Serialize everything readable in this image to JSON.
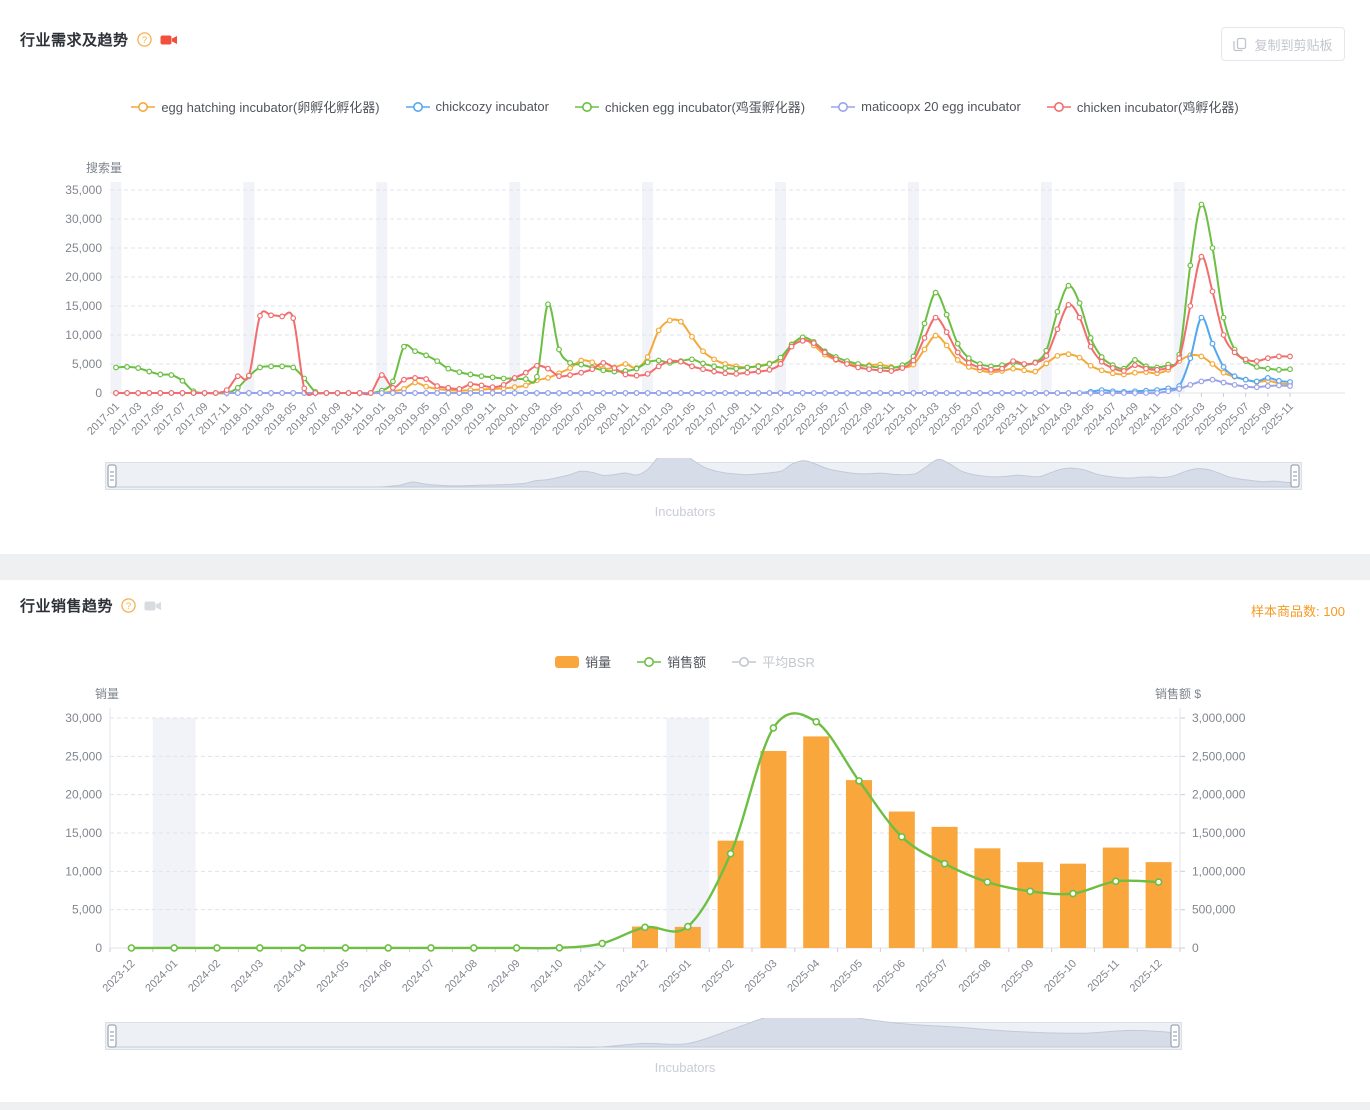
{
  "demand_section": {
    "title": "行业需求及趋势",
    "help_icon": "question-mark-circle",
    "video_icon": "video-camera",
    "copy_button_label": "复制到剪贴板",
    "watermark": "Incubators"
  },
  "sales_section": {
    "title": "行业销售趋势",
    "help_icon": "question-mark-circle",
    "video_icon": "video-camera",
    "sample_label": "样本商品数:",
    "sample_value": "100",
    "watermark": "Incubators"
  },
  "colors": {
    "orange": "#F4A939",
    "blue": "#55A7F0",
    "green": "#6CBF43",
    "purple": "#98A3EA",
    "red": "#F26D6D",
    "bar": "#F9A63C",
    "grid": "#E0E3E9",
    "band": "#F1F3F8",
    "axis_text": "#81868E",
    "accent": "#F59A23",
    "disabled": "#C3C7CE"
  },
  "chart_data": [
    {
      "type": "line",
      "title": "行业需求及趋势",
      "ylabel": "搜索量",
      "ylim": [
        0,
        35000
      ],
      "y_step": 5000,
      "label_every": 2,
      "grid": true,
      "legend_position": "top",
      "highlight_x": [
        "2017-01",
        "2018-01",
        "2019-01",
        "2020-01",
        "2021-01",
        "2022-01",
        "2023-01",
        "2024-01",
        "2025-01"
      ],
      "x": [
        "2017-01",
        "2017-02",
        "2017-03",
        "2017-04",
        "2017-05",
        "2017-06",
        "2017-07",
        "2017-08",
        "2017-09",
        "2017-10",
        "2017-11",
        "2017-12",
        "2018-01",
        "2018-02",
        "2018-03",
        "2018-04",
        "2018-05",
        "2018-06",
        "2018-07",
        "2018-08",
        "2018-09",
        "2018-10",
        "2018-11",
        "2018-12",
        "2019-01",
        "2019-02",
        "2019-03",
        "2019-04",
        "2019-05",
        "2019-06",
        "2019-07",
        "2019-08",
        "2019-09",
        "2019-10",
        "2019-11",
        "2019-12",
        "2020-01",
        "2020-02",
        "2020-03",
        "2020-04",
        "2020-05",
        "2020-06",
        "2020-07",
        "2020-08",
        "2020-09",
        "2020-10",
        "2020-11",
        "2020-12",
        "2021-01",
        "2021-02",
        "2021-03",
        "2021-04",
        "2021-05",
        "2021-06",
        "2021-07",
        "2021-08",
        "2021-09",
        "2021-10",
        "2021-11",
        "2021-12",
        "2022-01",
        "2022-02",
        "2022-03",
        "2022-04",
        "2022-05",
        "2022-06",
        "2022-07",
        "2022-08",
        "2022-09",
        "2022-10",
        "2022-11",
        "2022-12",
        "2023-01",
        "2023-02",
        "2023-03",
        "2023-04",
        "2023-05",
        "2023-06",
        "2023-07",
        "2023-08",
        "2023-09",
        "2023-10",
        "2023-11",
        "2023-12",
        "2024-01",
        "2024-02",
        "2024-03",
        "2024-04",
        "2024-05",
        "2024-06",
        "2024-07",
        "2024-08",
        "2024-09",
        "2024-10",
        "2024-11",
        "2024-12",
        "2025-01",
        "2025-02",
        "2025-03",
        "2025-04",
        "2025-05",
        "2025-06",
        "2025-07",
        "2025-08",
        "2025-09",
        "2025-10",
        "2025-11"
      ],
      "series": [
        {
          "name": "egg hatching incubator(卵孵化孵化器)",
          "color": "#F4A939",
          "values": [
            0,
            0,
            0,
            0,
            0,
            0,
            0,
            0,
            0,
            0,
            0,
            0,
            0,
            0,
            0,
            0,
            0,
            0,
            0,
            0,
            0,
            0,
            0,
            0,
            0,
            300,
            700,
            1800,
            1100,
            700,
            500,
            400,
            500,
            600,
            700,
            800,
            1000,
            1300,
            2200,
            2600,
            3400,
            4300,
            5600,
            5300,
            4200,
            4400,
            5000,
            4300,
            6200,
            10800,
            12500,
            12300,
            9700,
            7200,
            5800,
            5000,
            4600,
            4400,
            4700,
            5100,
            5800,
            8400,
            9400,
            8200,
            6600,
            5700,
            5100,
            4700,
            4800,
            4900,
            4500,
            4400,
            4900,
            7500,
            9900,
            8200,
            5700,
            4500,
            3900,
            3600,
            3800,
            4200,
            3900,
            3700,
            5100,
            6400,
            6700,
            6100,
            4700,
            3900,
            3400,
            3200,
            3500,
            3600,
            3400,
            4000,
            5500,
            6500,
            6300,
            5000,
            3500,
            2800,
            2300,
            1900,
            2100,
            1700,
            1500
          ]
        },
        {
          "name": "chickcozy incubator",
          "color": "#55A7F0",
          "values": [
            0,
            0,
            0,
            0,
            0,
            0,
            0,
            0,
            0,
            0,
            0,
            0,
            0,
            0,
            0,
            0,
            0,
            0,
            0,
            0,
            0,
            0,
            0,
            0,
            0,
            0,
            0,
            0,
            0,
            0,
            0,
            0,
            0,
            0,
            0,
            0,
            0,
            0,
            0,
            0,
            0,
            0,
            0,
            0,
            0,
            0,
            0,
            0,
            0,
            0,
            0,
            0,
            0,
            0,
            0,
            0,
            0,
            0,
            0,
            0,
            0,
            0,
            0,
            0,
            0,
            0,
            0,
            0,
            0,
            0,
            0,
            0,
            0,
            0,
            0,
            0,
            0,
            0,
            0,
            0,
            0,
            0,
            0,
            0,
            0,
            0,
            0,
            0,
            200,
            500,
            300,
            200,
            300,
            400,
            500,
            800,
            1200,
            6000,
            13000,
            8500,
            4500,
            2900,
            2300,
            2000,
            2600,
            2100,
            1900
          ]
        },
        {
          "name": "chicken egg incubator(鸡蛋孵化器)",
          "color": "#6CBF43",
          "values": [
            4400,
            4500,
            4300,
            3700,
            3200,
            3100,
            2100,
            300,
            0,
            0,
            0,
            900,
            2900,
            4400,
            4600,
            4600,
            4400,
            2500,
            200,
            0,
            0,
            0,
            0,
            0,
            400,
            2000,
            8000,
            7200,
            6500,
            5500,
            4200,
            3600,
            3200,
            2900,
            2700,
            2500,
            2500,
            2400,
            2800,
            15300,
            7500,
            5200,
            4900,
            4400,
            3900,
            3700,
            3800,
            4200,
            5300,
            5600,
            5200,
            5500,
            5800,
            5100,
            4600,
            4300,
            4200,
            4400,
            4600,
            5000,
            6100,
            8300,
            9600,
            8800,
            7200,
            6200,
            5500,
            5000,
            4600,
            4400,
            4300,
            4800,
            6300,
            12000,
            17300,
            13500,
            8500,
            6000,
            5000,
            4600,
            4800,
            5200,
            4900,
            5300,
            7300,
            14000,
            18500,
            15500,
            9500,
            6200,
            4800,
            4200,
            5700,
            4600,
            4400,
            4900,
            6600,
            22000,
            32500,
            25000,
            13000,
            7500,
            5500,
            4500,
            4200,
            4000,
            4100
          ]
        },
        {
          "name": "maticoopx 20 egg incubator",
          "color": "#98A3EA",
          "values": [
            0,
            0,
            0,
            0,
            0,
            0,
            0,
            0,
            0,
            0,
            0,
            0,
            0,
            0,
            0,
            0,
            0,
            0,
            0,
            0,
            0,
            0,
            0,
            0,
            0,
            0,
            0,
            0,
            0,
            0,
            0,
            0,
            0,
            0,
            0,
            0,
            0,
            0,
            0,
            0,
            0,
            0,
            0,
            0,
            0,
            0,
            0,
            0,
            0,
            0,
            0,
            0,
            0,
            0,
            0,
            0,
            0,
            0,
            0,
            0,
            0,
            0,
            0,
            0,
            0,
            0,
            0,
            0,
            0,
            0,
            0,
            0,
            0,
            0,
            0,
            0,
            0,
            0,
            0,
            0,
            0,
            0,
            0,
            0,
            0,
            0,
            0,
            0,
            0,
            0,
            0,
            0,
            0,
            0,
            0,
            300,
            700,
            1400,
            2000,
            2300,
            1800,
            1400,
            1100,
            1000,
            1200,
            1300,
            1200
          ]
        },
        {
          "name": "chicken incubator(鸡孵化器)",
          "color": "#F26D6D",
          "values": [
            0,
            0,
            0,
            0,
            0,
            0,
            0,
            0,
            0,
            0,
            500,
            2900,
            3000,
            13300,
            13400,
            13200,
            12900,
            800,
            0,
            0,
            0,
            0,
            0,
            0,
            3100,
            900,
            2300,
            2600,
            2400,
            1200,
            900,
            700,
            1500,
            1300,
            1000,
            1400,
            2600,
            3500,
            4700,
            4200,
            2900,
            3100,
            3500,
            4100,
            5200,
            4300,
            3200,
            3000,
            3300,
            4600,
            5500,
            5400,
            4600,
            4100,
            3700,
            3400,
            3300,
            3500,
            3700,
            4000,
            5000,
            8000,
            9000,
            8600,
            7000,
            5800,
            5000,
            4400,
            4100,
            3900,
            3800,
            4300,
            5600,
            9500,
            13000,
            10500,
            7000,
            5200,
            4400,
            4000,
            4200,
            5500,
            5000,
            5200,
            6400,
            11000,
            15200,
            13000,
            8000,
            5400,
            4300,
            3800,
            4800,
            4200,
            4000,
            4400,
            6000,
            15000,
            23500,
            17500,
            10000,
            7000,
            5800,
            5500,
            6000,
            6300,
            6300
          ]
        }
      ]
    },
    {
      "type": "bar+line",
      "title": "行业销售趋势",
      "left_axis": {
        "label": "销量",
        "max": 30000,
        "step": 5000
      },
      "right_axis": {
        "label": "销售额 $",
        "max": 3000000,
        "step": 500000
      },
      "highlight_x": [
        "2024-01",
        "2025-01"
      ],
      "x": [
        "2023-12",
        "2024-01",
        "2024-02",
        "2024-03",
        "2024-04",
        "2024-05",
        "2024-06",
        "2024-07",
        "2024-08",
        "2024-09",
        "2024-10",
        "2024-11",
        "2024-12",
        "2025-01",
        "2025-02",
        "2025-03",
        "2025-04",
        "2025-05",
        "2025-06",
        "2025-07",
        "2025-08",
        "2025-09",
        "2025-10",
        "2025-11",
        "2025-12"
      ],
      "series": [
        {
          "name": "销量",
          "type": "bar",
          "axis": "left",
          "color": "#F9A63C",
          "values": [
            0,
            0,
            0,
            0,
            0,
            0,
            0,
            0,
            0,
            0,
            0,
            0,
            2800,
            2750,
            14000,
            25700,
            27600,
            21900,
            17800,
            15800,
            13000,
            11200,
            11000,
            13100,
            11200
          ]
        },
        {
          "name": "销售额",
          "type": "line",
          "axis": "right",
          "color": "#6CBF43",
          "values": [
            0,
            1000,
            1000,
            1000,
            1000,
            1000,
            1000,
            1000,
            1000,
            1000,
            2000,
            60000,
            270000,
            280000,
            1230000,
            2870000,
            2950000,
            2180000,
            1450000,
            1100000,
            860000,
            740000,
            710000,
            870000,
            860000
          ]
        },
        {
          "name": "平均BSR",
          "type": "line",
          "axis": "right",
          "color": "#C8CBD2",
          "disabled": true,
          "values": []
        }
      ]
    }
  ]
}
